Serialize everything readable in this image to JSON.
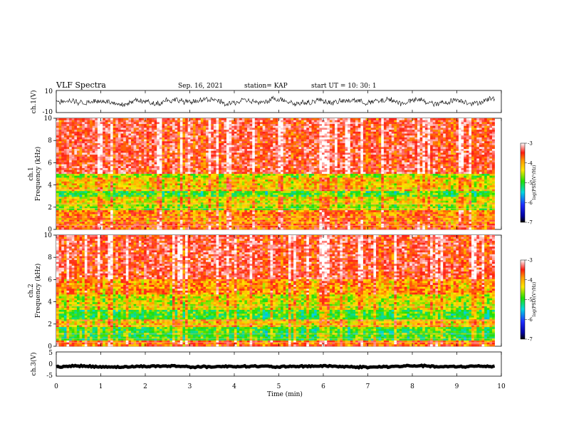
{
  "header": {
    "title": "VLF Spectra",
    "date": "Sep. 16, 2021",
    "station": "station= KAP",
    "start": "start  UT =   10: 30: 1"
  },
  "colors": {
    "spectrogram_dominant": "#ff2a1a",
    "band_yellow": "#ffe600",
    "band_green": "#22e000",
    "noise_blue": "#1e2dff",
    "waveform": "#000000"
  },
  "chart_data": [
    {
      "type": "line",
      "name": "ch1-waveform",
      "ylabel": "ch.1(V)",
      "ylim": [
        -10,
        10
      ],
      "yticks": [
        "10",
        "-10"
      ],
      "xlim": [
        0,
        10
      ],
      "description_values": {
        "baseline": 0,
        "amplitude_approx": 5
      }
    },
    {
      "type": "heatmap",
      "name": "ch1-spectrogram",
      "ylabel_line1": "ch.1",
      "ylabel_line2": "Frequency  (kHz)",
      "ylim": [
        0,
        10
      ],
      "yticks": [
        "0",
        "2",
        "4",
        "6",
        "8",
        "10"
      ],
      "xlim": [
        0,
        9.85
      ],
      "bands": [
        {
          "f_low": 0.0,
          "f_high": 0.6,
          "level": -3.7
        },
        {
          "f_low": 0.6,
          "f_high": 1.8,
          "level": -3.9
        },
        {
          "f_low": 1.8,
          "f_high": 2.3,
          "level": -4.6
        },
        {
          "f_low": 2.3,
          "f_high": 2.9,
          "level": -4.3
        },
        {
          "f_low": 2.9,
          "f_high": 3.5,
          "level": -4.9
        },
        {
          "f_low": 3.5,
          "f_high": 4.6,
          "level": -4.2
        },
        {
          "f_low": 4.6,
          "f_high": 5.0,
          "level": -4.6
        },
        {
          "f_low": 5.0,
          "f_high": 10.0,
          "level": -3.5
        }
      ],
      "colorbar": {
        "min": -7,
        "max": -3,
        "ticks": [
          "-3",
          "-4",
          "-5",
          "-6",
          "-7"
        ],
        "label": "log(PSD)(V²/Hz)"
      }
    },
    {
      "type": "heatmap",
      "name": "ch2-spectrogram",
      "ylabel_line1": "ch.2",
      "ylabel_line2": "Frequency  (kHz)",
      "ylim": [
        0,
        10
      ],
      "yticks": [
        "0",
        "2",
        "4",
        "6",
        "8",
        "10"
      ],
      "xlim": [
        0,
        9.85
      ],
      "bands": [
        {
          "f_low": 0.0,
          "f_high": 0.5,
          "level": -3.8
        },
        {
          "f_low": 0.5,
          "f_high": 1.8,
          "level": -4.9
        },
        {
          "f_low": 1.8,
          "f_high": 2.4,
          "level": -4.2
        },
        {
          "f_low": 2.4,
          "f_high": 3.2,
          "level": -4.9
        },
        {
          "f_low": 3.2,
          "f_high": 4.6,
          "level": -4.4
        },
        {
          "f_low": 4.6,
          "f_high": 6.0,
          "level": -4.0
        },
        {
          "f_low": 6.0,
          "f_high": 10.0,
          "level": -3.5
        }
      ],
      "colorbar": {
        "min": -7,
        "max": -3,
        "ticks": [
          "-3",
          "-4",
          "-5",
          "-6",
          "-7"
        ],
        "label": "log(PSD)(V²/Hz)"
      }
    },
    {
      "type": "line",
      "name": "ch3-waveform",
      "ylabel": "ch.3(V)",
      "ylim": [
        -5,
        5
      ],
      "yticks": [
        "5",
        "0",
        "-5"
      ],
      "xlim": [
        0,
        10
      ],
      "xlabel": "Time  (min)",
      "xticks": [
        "0",
        "1",
        "2",
        "3",
        "4",
        "5",
        "6",
        "7",
        "8",
        "9",
        "10"
      ],
      "description_values": {
        "baseline": -1,
        "amplitude_approx": 0.6
      }
    }
  ]
}
